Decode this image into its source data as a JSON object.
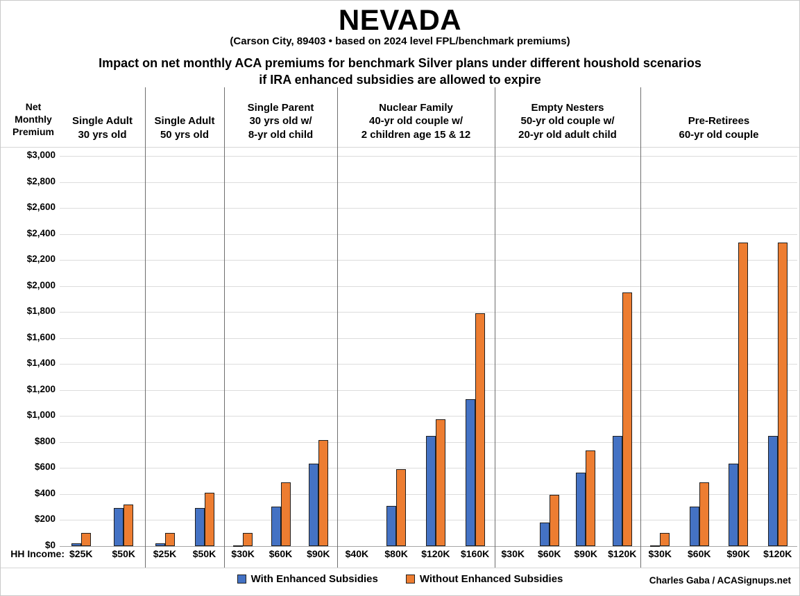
{
  "chart_data": {
    "type": "bar",
    "title": "NEVADA",
    "subtitle": "(Carson City, 89403 • based on 2024 level FPL/benchmark premiums)",
    "description_line1": "Impact on net monthly ACA premiums for benchmark Silver plans under different houshold scenarios",
    "description_line2": "if IRA enhanced subsidies are allowed to expire",
    "y_axis_title_lines": [
      "Net",
      "Monthly",
      "Premium"
    ],
    "x_axis_title": "HH Income:",
    "ylim": [
      0,
      3000
    ],
    "ytick_step": 200,
    "ytick_labels": [
      "$3,000",
      "$2,800",
      "$2,600",
      "$2,400",
      "$2,200",
      "$2,000",
      "$1,800",
      "$1,600",
      "$1,400",
      "$1,200",
      "$1,000",
      "$800",
      "$600",
      "$400",
      "$200",
      "$0"
    ],
    "grid": "horizontal",
    "legend_position": "bottom-center",
    "series_names": [
      "With Enhanced Subsidies",
      "Without Enhanced Subsidies"
    ],
    "colors": {
      "with_enhanced": "#4472C4",
      "without_enhanced": "#ED7D31"
    },
    "groups": [
      {
        "header_lines": [
          "Single Adult",
          "30 yrs old"
        ],
        "slots": [
          {
            "income": "$25K",
            "with_enhanced": 20,
            "without_enhanced": 100
          },
          {
            "income": "$50K",
            "with_enhanced": 295,
            "without_enhanced": 320
          }
        ]
      },
      {
        "header_lines": [
          "Single Adult",
          "50 yrs old"
        ],
        "slots": [
          {
            "income": "$25K",
            "with_enhanced": 20,
            "without_enhanced": 100
          },
          {
            "income": "$50K",
            "with_enhanced": 295,
            "without_enhanced": 410
          }
        ]
      },
      {
        "header_lines": [
          "Single Parent",
          "30 yrs old w/",
          "8-yr old child"
        ],
        "slots": [
          {
            "income": "$30K",
            "with_enhanced": 5,
            "without_enhanced": 100
          },
          {
            "income": "$60K",
            "with_enhanced": 305,
            "without_enhanced": 490
          },
          {
            "income": "$90K",
            "with_enhanced": 635,
            "without_enhanced": 815
          }
        ]
      },
      {
        "header_lines": [
          "Nuclear Family",
          "40-yr old couple w/",
          "2 children age 15 & 12"
        ],
        "slots": [
          {
            "income": "$40K",
            "with_enhanced": 0,
            "without_enhanced": 0
          },
          {
            "income": "$80K",
            "with_enhanced": 310,
            "without_enhanced": 590
          },
          {
            "income": "$120K",
            "with_enhanced": 845,
            "without_enhanced": 975
          },
          {
            "income": "$160K",
            "with_enhanced": 1130,
            "without_enhanced": 1790
          }
        ]
      },
      {
        "header_lines": [
          "Empty Nesters",
          "50-yr old couple w/",
          "20-yr old adult child"
        ],
        "slots": [
          {
            "income": "$30K",
            "with_enhanced": 0,
            "without_enhanced": 0
          },
          {
            "income": "$60K",
            "with_enhanced": 180,
            "without_enhanced": 395
          },
          {
            "income": "$90K",
            "with_enhanced": 565,
            "without_enhanced": 735
          },
          {
            "income": "$120K",
            "with_enhanced": 845,
            "without_enhanced": 1950
          }
        ]
      },
      {
        "header_lines": [
          "Pre-Retirees",
          "60-yr old couple"
        ],
        "slots": [
          {
            "income": "$30K",
            "with_enhanced": 5,
            "without_enhanced": 100
          },
          {
            "income": "$60K",
            "with_enhanced": 305,
            "without_enhanced": 490
          },
          {
            "income": "$90K",
            "with_enhanced": 635,
            "without_enhanced": 2335
          },
          {
            "income": "$120K",
            "with_enhanced": 845,
            "without_enhanced": 2335
          }
        ]
      }
    ],
    "legend": [
      {
        "label": "With Enhanced Subsidies",
        "color": "#4472C4"
      },
      {
        "label": "Without Enhanced Subsidies",
        "color": "#ED7D31"
      }
    ],
    "credit": "Charles Gaba / ACASignups.net"
  }
}
